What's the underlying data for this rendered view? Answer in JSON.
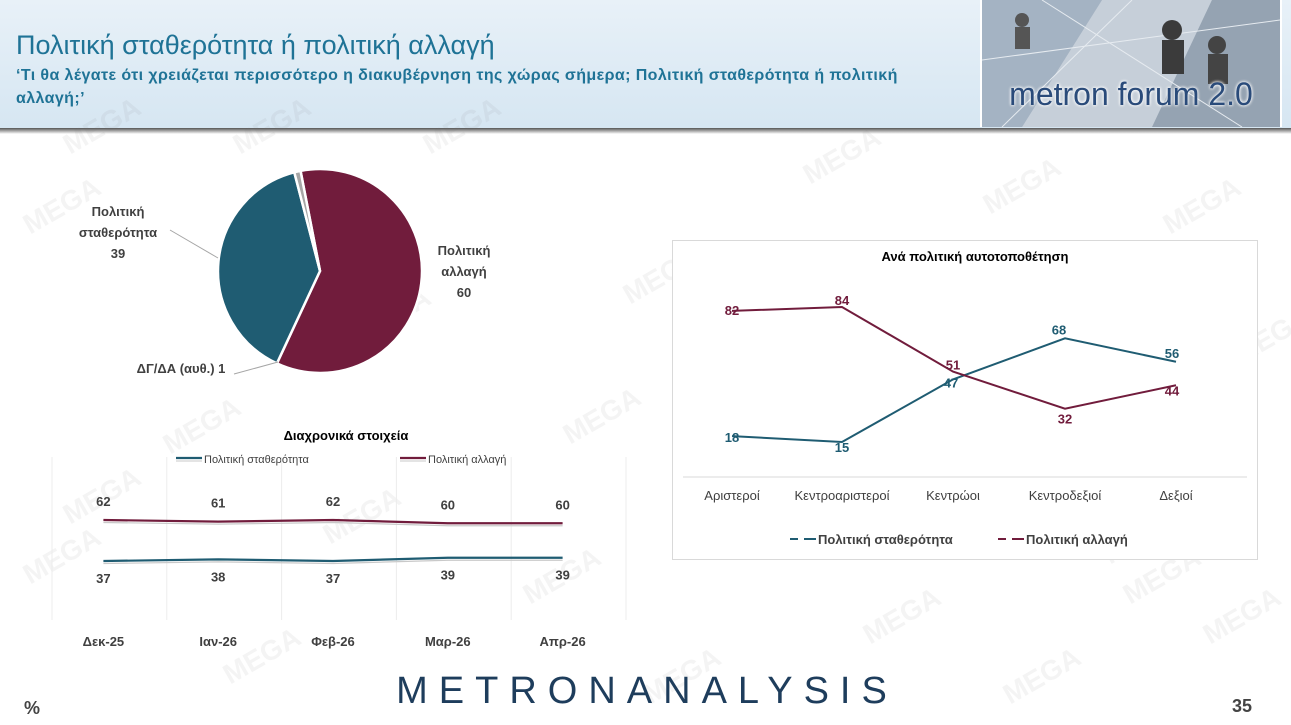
{
  "header": {
    "title": "Πολιτική σταθερότητα ή πολιτική αλλαγή",
    "subtitle": "‘Τι θα λέγατε ότι χρειάζεται περισσότερο η διακυβέρνηση της χώρας σήμερα; Πολιτική σταθερότητα ή πολιτική αλλαγή;’",
    "badge": "metron forum 2.0"
  },
  "watermark": "MEGA",
  "footer": {
    "logo": "METRONANALYSIS",
    "unit": "%",
    "page": "35"
  },
  "colors": {
    "stability": "#1f5c72",
    "change": "#711c3c",
    "dkna": "#a6a6a6",
    "title": "#1f7396"
  },
  "chart_data": [
    {
      "type": "pie",
      "labels": [
        "Πολιτική αλλαγή",
        "Πολιτική σταθερότητα",
        "ΔΓ/ΔΑ (αυθ.)"
      ],
      "values": [
        60,
        39,
        1
      ],
      "label_texts": [
        [
          "Πολιτική",
          "αλλαγή",
          "60"
        ],
        [
          "Πολιτική",
          "σταθερότητα",
          "39"
        ],
        [
          "ΔΓ/ΔΑ (αυθ.) 1"
        ]
      ]
    },
    {
      "type": "line",
      "title": "Διαχρονικά στοιχεία",
      "categories": [
        "Δεκ-25",
        "Ιαν-26",
        "Φεβ-26",
        "Μαρ-26",
        "Απρ-26"
      ],
      "series": [
        {
          "name": "Πολιτική σταθερότητα",
          "values": [
            37,
            38,
            37,
            39,
            39
          ]
        },
        {
          "name": "Πολιτική αλλαγή",
          "values": [
            62,
            61,
            62,
            60,
            60
          ]
        }
      ],
      "ylim": [
        0,
        100
      ],
      "legend": "top"
    },
    {
      "type": "line",
      "title": "Ανά πολιτική αυτοτοποθέτηση",
      "categories": [
        "Αριστεροί",
        "Κεντροαριστεροί",
        "Κεντρώοι",
        "Κεντροδεξιοί",
        "Δεξιοί"
      ],
      "series": [
        {
          "name": "Πολιτική σταθερότητα",
          "values": [
            18,
            15,
            47,
            68,
            56
          ]
        },
        {
          "name": "Πολιτική αλλαγή",
          "values": [
            82,
            84,
            51,
            32,
            44
          ]
        }
      ],
      "ylim": [
        0,
        100
      ],
      "legend": "bottom"
    }
  ]
}
